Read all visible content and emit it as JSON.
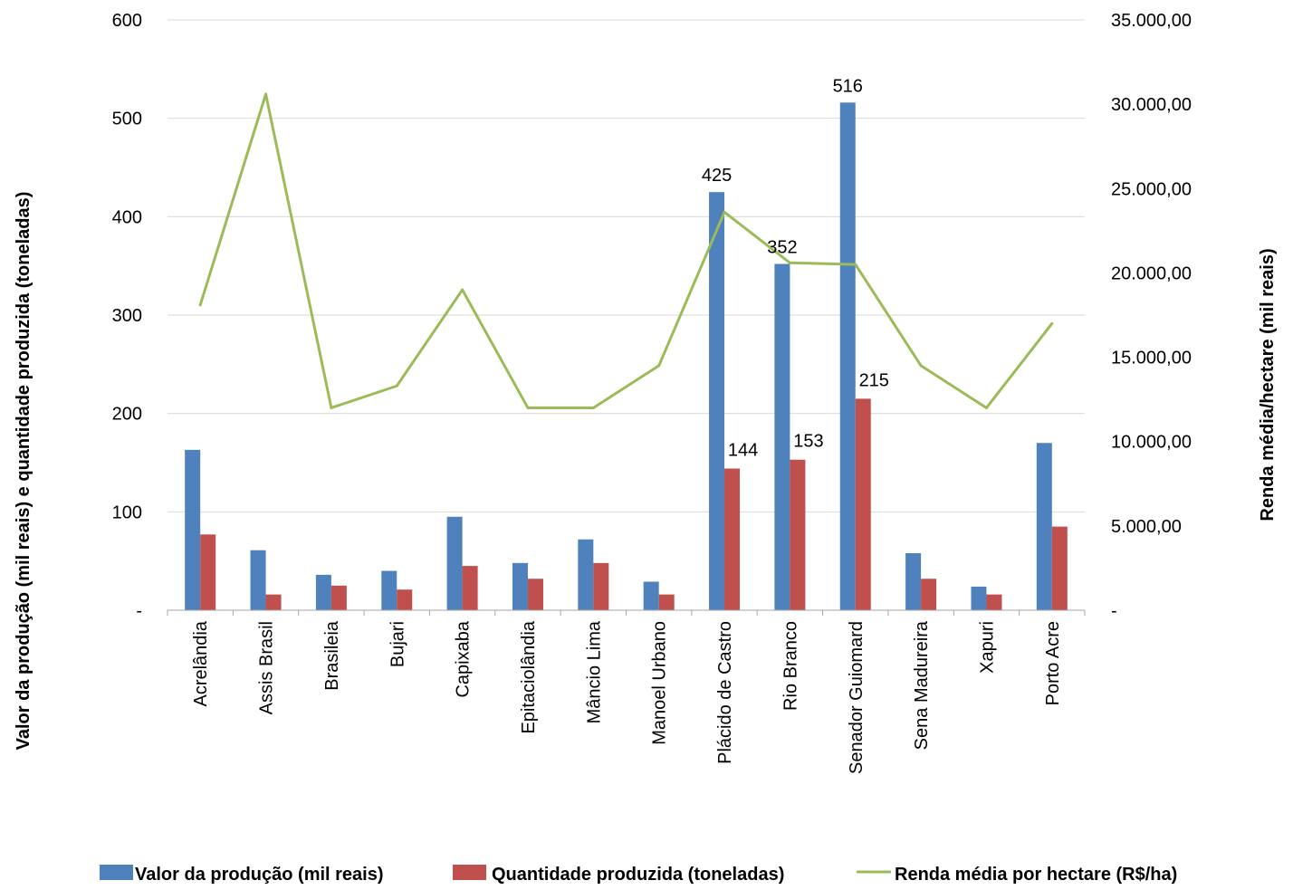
{
  "chart_data": {
    "type": "bar",
    "categories": [
      "Acrelândia",
      "Assis Brasil",
      "Brasileia",
      "Bujari",
      "Capixaba",
      "Epitaciolândia",
      "Mâncio Lima",
      "Manoel Urbano",
      "Plácido de Castro",
      "Rio Branco",
      "Senador Guiomard",
      "Sena Madureira",
      "Xapuri",
      "Porto Acre"
    ],
    "series": [
      {
        "name": "Valor da produção (mil reais)",
        "kind": "bar",
        "axis": "left",
        "color": "#4F81BD",
        "values": [
          163,
          61,
          36,
          40,
          95,
          48,
          72,
          29,
          425,
          352,
          516,
          58,
          24,
          170
        ],
        "data_labels": [
          null,
          null,
          null,
          null,
          null,
          null,
          null,
          null,
          "425",
          "352",
          "516",
          null,
          null,
          null
        ]
      },
      {
        "name": "Quantidade produzida (toneladas)",
        "kind": "bar",
        "axis": "left",
        "color": "#C0504D",
        "values": [
          77,
          16,
          25,
          21,
          45,
          32,
          48,
          16,
          144,
          153,
          215,
          32,
          16,
          85
        ],
        "data_labels": [
          null,
          null,
          null,
          null,
          null,
          null,
          null,
          null,
          "144",
          "153",
          "215",
          null,
          null,
          null
        ]
      },
      {
        "name": "Renda média por hectare (R$/ha)",
        "kind": "line",
        "axis": "right",
        "color": "#9BBB59",
        "values": [
          18100,
          30600,
          12000,
          13300,
          19000,
          12000,
          12000,
          14500,
          23600,
          20600,
          20500,
          14500,
          12000,
          17000
        ]
      }
    ],
    "y_left": {
      "label": "Valor da produção (mil reais) e quantidade produzida (toneladas)",
      "range": [
        0,
        600
      ],
      "ticks": [
        0,
        100,
        200,
        300,
        400,
        500,
        600
      ],
      "tick_labels": [
        "-",
        "100",
        "200",
        "300",
        "400",
        "500",
        "600"
      ]
    },
    "y_right": {
      "label": "Renda média/hectare (mil reais)",
      "range": [
        0,
        35000
      ],
      "ticks": [
        0,
        5000,
        10000,
        15000,
        20000,
        25000,
        30000,
        35000
      ],
      "tick_labels": [
        "-",
        "5.000,00",
        "10.000,00",
        "15.000,00",
        "20.000,00",
        "25.000,00",
        "30.000,00",
        "35.000,00"
      ]
    },
    "grid": true,
    "legend_position": "bottom",
    "colors": {
      "gridline": "#D9D9D9",
      "axis": "#A6A6A6"
    }
  }
}
